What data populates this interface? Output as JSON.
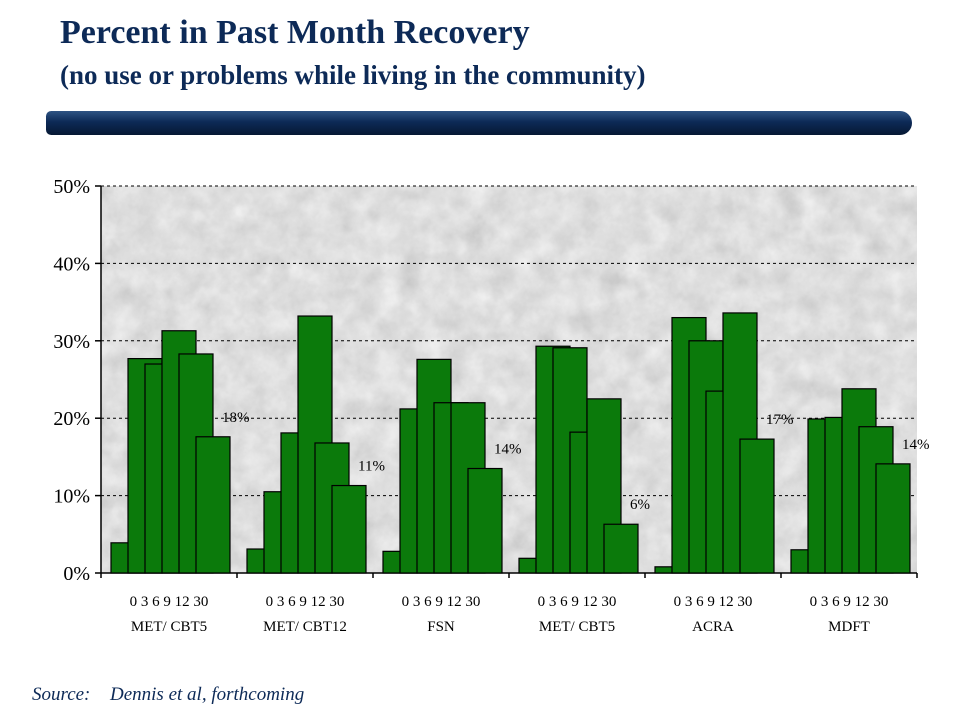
{
  "header": {
    "title": "Percent in Past Month Recovery",
    "subtitle": "(no use or problems while living in the community)"
  },
  "footer": {
    "source_label": "Source:",
    "source_text": "Dennis et al, forthcoming"
  },
  "colors": {
    "title": "#0d2a57",
    "bar_fill": "#0b7a0b",
    "plot_background": "#b4b4b4"
  },
  "chart_data": {
    "type": "bar",
    "yticks": [
      "0%",
      "10%",
      "20%",
      "30%",
      "40%",
      "50%"
    ],
    "ylim": [
      0,
      50
    ],
    "grid": "dashed horizontal",
    "groups": [
      {
        "name": "MET/ CBT5",
        "months": "0 3 6 9 12 30",
        "values": [
          3.9,
          27.7,
          27.0,
          31.3,
          28.3,
          17.6
        ],
        "label": "18%"
      },
      {
        "name": "MET/ CBT12",
        "months": "0 3 6 9 12 30",
        "values": [
          3.1,
          10.5,
          18.1,
          33.2,
          16.8,
          11.3
        ],
        "label": "11%"
      },
      {
        "name": "FSN",
        "months": "0 3 6 9 12 30",
        "values": [
          2.8,
          21.2,
          27.6,
          22.0,
          22.0,
          13.5
        ],
        "label": "14%"
      },
      {
        "name": "MET/ CBT5",
        "months": "0 3 6 9 12 30",
        "values": [
          1.9,
          29.3,
          29.1,
          18.2,
          22.5,
          6.3
        ],
        "label": "6%"
      },
      {
        "name": "ACRA",
        "months": "0 3 6 9 12 30",
        "values": [
          0.8,
          33.0,
          30.0,
          23.5,
          33.6,
          17.3
        ],
        "label": "17%"
      },
      {
        "name": "MDFT",
        "months": "0 3 6 9 12 30",
        "values": [
          3.0,
          19.9,
          20.1,
          23.8,
          18.9,
          14.1
        ],
        "label": "14%"
      }
    ]
  }
}
